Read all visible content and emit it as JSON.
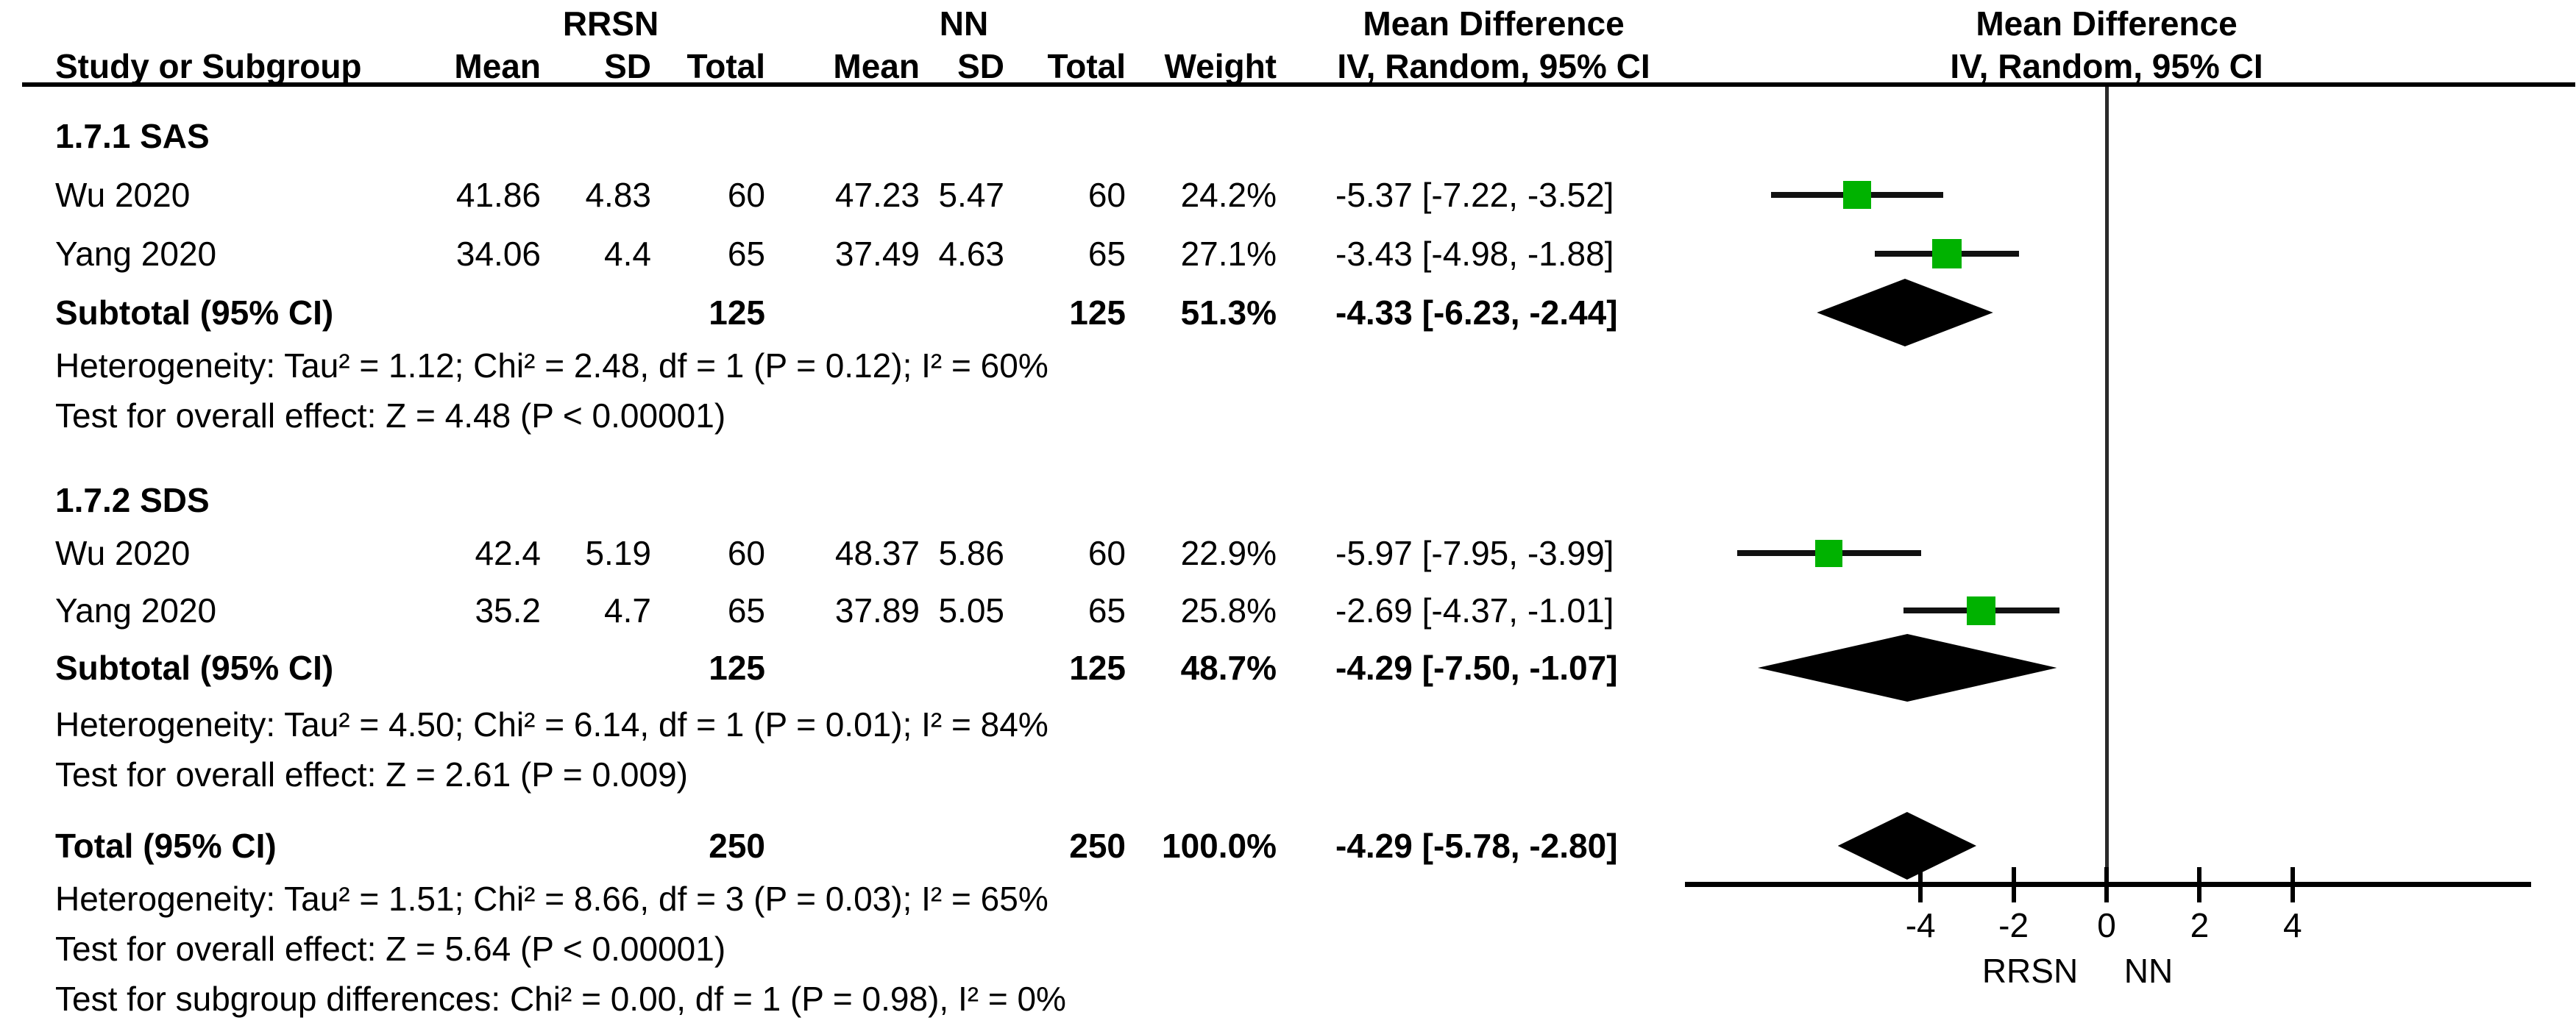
{
  "header": {
    "group1": "RRSN",
    "group2": "NN",
    "effect_col_line1": "Mean Difference",
    "effect_col_line2": "IV, Random, 95% CI",
    "plot_col_line1": "Mean Difference",
    "plot_col_line2": "IV, Random, 95% CI",
    "col_study": "Study or Subgroup",
    "col_mean": "Mean",
    "col_sd": "SD",
    "col_total": "Total",
    "col_weight": "Weight"
  },
  "sections": [
    {
      "label": "1.7.1 SAS",
      "studies": [
        {
          "study": "Wu 2020",
          "mean1": "41.86",
          "sd1": "4.83",
          "n1": "60",
          "mean2": "47.23",
          "sd2": "5.47",
          "n2": "60",
          "weight": "24.2%",
          "ci": "-5.37 [-7.22, -3.52]",
          "est": -5.37,
          "lo": -7.22,
          "hi": -3.52,
          "weight_val": 24.2
        },
        {
          "study": "Yang 2020",
          "mean1": "34.06",
          "sd1": "4.4",
          "n1": "65",
          "mean2": "37.49",
          "sd2": "4.63",
          "n2": "65",
          "weight": "27.1%",
          "ci": "-3.43 [-4.98, -1.88]",
          "est": -3.43,
          "lo": -4.98,
          "hi": -1.88,
          "weight_val": 27.1
        }
      ],
      "subtotal": {
        "label": "Subtotal (95% CI)",
        "n1": "125",
        "n2": "125",
        "weight": "51.3%",
        "ci": "-4.33 [-6.23, -2.44]",
        "est": -4.33,
        "lo": -6.23,
        "hi": -2.44
      },
      "heterogeneity": "Heterogeneity: Tau² = 1.12; Chi² = 2.48, df = 1 (P = 0.12); I² = 60%",
      "overall": "Test for overall effect: Z = 4.48 (P < 0.00001)"
    },
    {
      "label": "1.7.2 SDS",
      "studies": [
        {
          "study": "Wu 2020",
          "mean1": "42.4",
          "sd1": "5.19",
          "n1": "60",
          "mean2": "48.37",
          "sd2": "5.86",
          "n2": "60",
          "weight": "22.9%",
          "ci": "-5.97 [-7.95, -3.99]",
          "est": -5.97,
          "lo": -7.95,
          "hi": -3.99,
          "weight_val": 22.9
        },
        {
          "study": "Yang 2020",
          "mean1": "35.2",
          "sd1": "4.7",
          "n1": "65",
          "mean2": "37.89",
          "sd2": "5.05",
          "n2": "65",
          "weight": "25.8%",
          "ci": "-2.69 [-4.37, -1.01]",
          "est": -2.69,
          "lo": -4.37,
          "hi": -1.01,
          "weight_val": 25.8
        }
      ],
      "subtotal": {
        "label": "Subtotal (95% CI)",
        "n1": "125",
        "n2": "125",
        "weight": "48.7%",
        "ci": "-4.29 [-7.50, -1.07]",
        "est": -4.29,
        "lo": -7.5,
        "hi": -1.07
      },
      "heterogeneity": "Heterogeneity: Tau² = 4.50; Chi² = 6.14, df = 1 (P = 0.01); I² = 84%",
      "overall": "Test for overall effect: Z = 2.61 (P = 0.009)"
    }
  ],
  "total": {
    "label": "Total (95% CI)",
    "n1": "250",
    "n2": "250",
    "weight": "100.0%",
    "ci": "-4.29 [-5.78, -2.80]",
    "est": -4.29,
    "lo": -5.78,
    "hi": -2.8
  },
  "total_heterogeneity": "Heterogeneity: Tau² = 1.51; Chi² = 8.66, df = 3 (P = 0.03); I² = 65%",
  "total_overall": "Test for overall effect: Z = 5.64 (P < 0.00001)",
  "subgroup_diff": "Test for subgroup differences: Chi² = 0.00, df = 1 (P = 0.98), I² = 0%",
  "axis": {
    "ticks": [
      -4,
      -2,
      0,
      2,
      4
    ],
    "footer_left": "RRSN",
    "footer_right": "NN"
  },
  "colors": {
    "marker_green": "#00B200",
    "ink": "#000000"
  },
  "chart_data": {
    "type": "forest",
    "effect_measure": "Mean Difference",
    "model": "IV, Random, 95% CI",
    "group_labels": [
      "RRSN",
      "NN"
    ],
    "xlabel_left": "RRSN",
    "xlabel_right": "NN",
    "axis_ticks": [
      -4,
      -2,
      0,
      2,
      4
    ],
    "axis_range_visible": [
      -9,
      9
    ],
    "subgroups": [
      {
        "name": "1.7.1 SAS",
        "studies": [
          {
            "study": "Wu 2020",
            "exp_mean": 41.86,
            "exp_sd": 4.83,
            "exp_n": 60,
            "ctrl_mean": 47.23,
            "ctrl_sd": 5.47,
            "ctrl_n": 60,
            "weight_pct": 24.2,
            "md": -5.37,
            "ci_low": -7.22,
            "ci_high": -3.52
          },
          {
            "study": "Yang 2020",
            "exp_mean": 34.06,
            "exp_sd": 4.4,
            "exp_n": 65,
            "ctrl_mean": 37.49,
            "ctrl_sd": 4.63,
            "ctrl_n": 65,
            "weight_pct": 27.1,
            "md": -3.43,
            "ci_low": -4.98,
            "ci_high": -1.88
          }
        ],
        "subtotal": {
          "exp_n": 125,
          "ctrl_n": 125,
          "weight_pct": 51.3,
          "md": -4.33,
          "ci_low": -6.23,
          "ci_high": -2.44
        },
        "tau2": 1.12,
        "chi2": 2.48,
        "df": 1,
        "p_het": 0.12,
        "i2_pct": 60,
        "z": 4.48,
        "p_overall": "< 0.00001"
      },
      {
        "name": "1.7.2 SDS",
        "studies": [
          {
            "study": "Wu 2020",
            "exp_mean": 42.4,
            "exp_sd": 5.19,
            "exp_n": 60,
            "ctrl_mean": 48.37,
            "ctrl_sd": 5.86,
            "ctrl_n": 60,
            "weight_pct": 22.9,
            "md": -5.97,
            "ci_low": -7.95,
            "ci_high": -3.99
          },
          {
            "study": "Yang 2020",
            "exp_mean": 35.2,
            "exp_sd": 4.7,
            "exp_n": 65,
            "ctrl_mean": 37.89,
            "ctrl_sd": 5.05,
            "ctrl_n": 65,
            "weight_pct": 25.8,
            "md": -2.69,
            "ci_low": -4.37,
            "ci_high": -1.01
          }
        ],
        "subtotal": {
          "exp_n": 125,
          "ctrl_n": 125,
          "weight_pct": 48.7,
          "md": -4.29,
          "ci_low": -7.5,
          "ci_high": -1.07
        },
        "tau2": 4.5,
        "chi2": 6.14,
        "df": 1,
        "p_het": 0.01,
        "i2_pct": 84,
        "z": 2.61,
        "p_overall": "= 0.009"
      }
    ],
    "total": {
      "exp_n": 250,
      "ctrl_n": 250,
      "weight_pct": 100.0,
      "md": -4.29,
      "ci_low": -5.78,
      "ci_high": -2.8,
      "tau2": 1.51,
      "chi2": 8.66,
      "df": 3,
      "p_het": 0.03,
      "i2_pct": 65,
      "z": 5.64,
      "p_overall": "< 0.00001"
    },
    "subgroup_difference": {
      "chi2": 0.0,
      "df": 1,
      "p": 0.98,
      "i2_pct": 0
    }
  }
}
